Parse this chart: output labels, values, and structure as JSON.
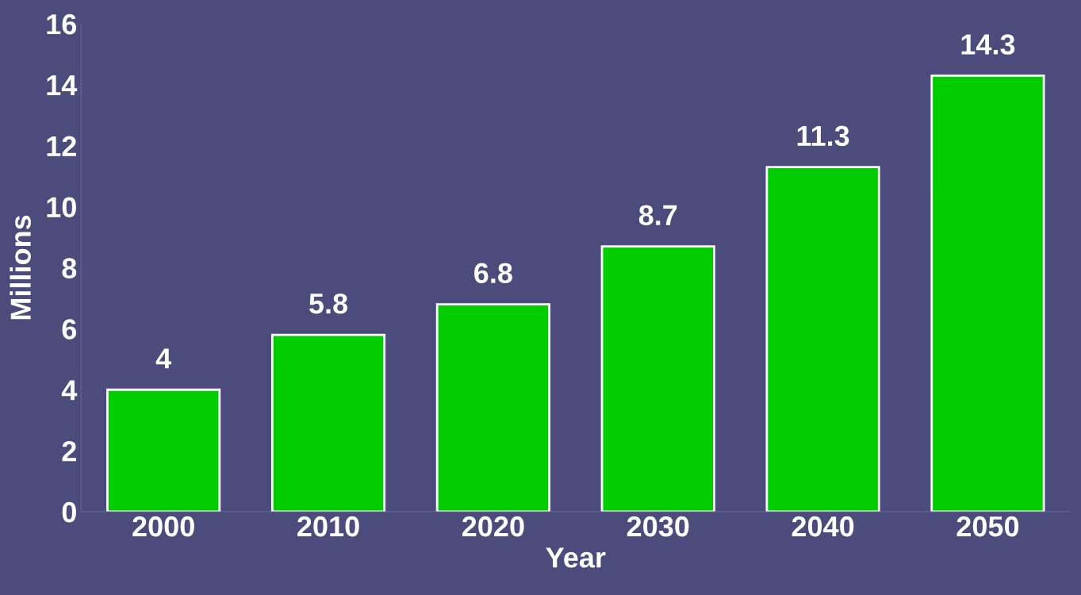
{
  "chart_data": {
    "type": "bar",
    "xlabel": "Year",
    "ylabel": "Millions",
    "categories": [
      "2000",
      "2010",
      "2020",
      "2030",
      "2040",
      "2050"
    ],
    "values": [
      4,
      5.8,
      6.8,
      8.7,
      11.3,
      14.3
    ],
    "color": "#00cc00",
    "ylim": [
      0,
      16
    ],
    "yticks": [
      0,
      2,
      4,
      6,
      8,
      10,
      12,
      14,
      16
    ],
    "data_labels": true,
    "grid": false
  }
}
